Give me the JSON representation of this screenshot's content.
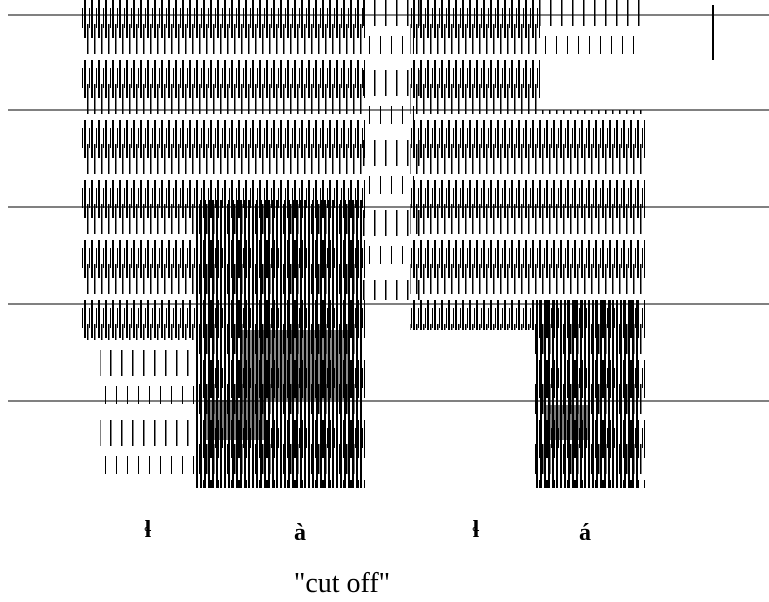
{
  "segments": [
    "ɬ",
    "à",
    "ɬ",
    "á"
  ],
  "gloss": "\"cut off\""
}
